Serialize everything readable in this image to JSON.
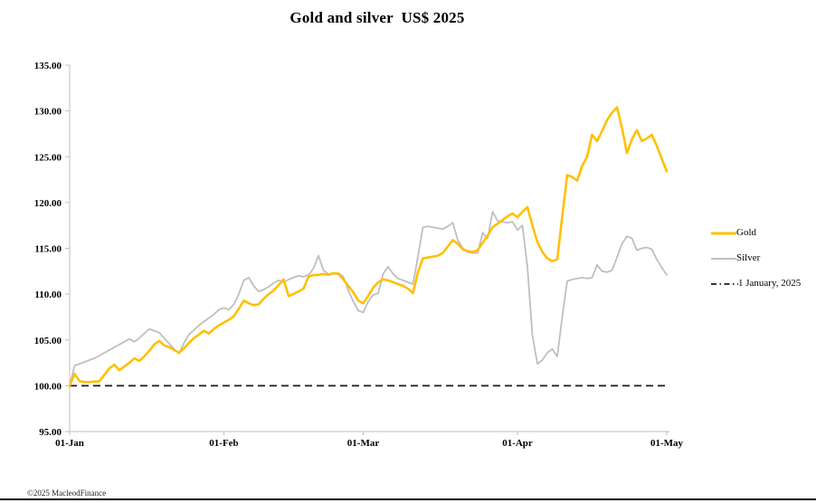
{
  "page": {
    "title": "Gold and silver  US$ 2025",
    "copyright": "©2025 MacleodFinance"
  },
  "legend": {
    "items": [
      {
        "label": "Gold",
        "color": "#FFC000"
      },
      {
        "label": "Silver",
        "color": "#BFBFBF"
      },
      {
        "label": "1 January, 2025",
        "color": "#1A1A1A"
      }
    ]
  },
  "chart_data": {
    "type": "line",
    "title": "Gold and silver  US$ 2025",
    "xlabel": "",
    "ylabel": "",
    "x_unit": "calendar days since 1 January 2025, indexed 100 = 1 Jan price",
    "grid": false,
    "legend_position": "right",
    "xlim_days": [
      0,
      120
    ],
    "ylim": [
      95,
      135
    ],
    "axis_color": "#BFBFBF",
    "x_ticks": [
      {
        "day": 0,
        "label": "01-Jan"
      },
      {
        "day": 31,
        "label": "01-Feb"
      },
      {
        "day": 59,
        "label": "01-Mar"
      },
      {
        "day": 90,
        "label": "01-Apr"
      },
      {
        "day": 120,
        "label": "01-May"
      }
    ],
    "y_ticks": [
      {
        "value": 95,
        "label": "95.00"
      },
      {
        "value": 100,
        "label": "100.00"
      },
      {
        "value": 105,
        "label": "105.00"
      },
      {
        "value": 110,
        "label": "110.00"
      },
      {
        "value": 115,
        "label": "115.00"
      },
      {
        "value": 120,
        "label": "120.00"
      },
      {
        "value": 125,
        "label": "125.00"
      },
      {
        "value": 130,
        "label": "130.00"
      },
      {
        "value": 135,
        "label": "135.00"
      }
    ],
    "baseline": {
      "value": 100,
      "label": "1 January, 2025",
      "color": "#1A1A1A",
      "style": "dashed"
    },
    "series": [
      {
        "name": "Gold",
        "color": "#FFC000",
        "width": 2.6,
        "points": [
          [
            0,
            100.0
          ],
          [
            1,
            101.3
          ],
          [
            2,
            100.5
          ],
          [
            3,
            100.4
          ],
          [
            4,
            100.4
          ],
          [
            6,
            100.5
          ],
          [
            7,
            101.2
          ],
          [
            8,
            101.9
          ],
          [
            9,
            102.3
          ],
          [
            10,
            101.7
          ],
          [
            11,
            102.1
          ],
          [
            12,
            102.5
          ],
          [
            13,
            103.0
          ],
          [
            14,
            102.7
          ],
          [
            15,
            103.2
          ],
          [
            16,
            103.8
          ],
          [
            17,
            104.5
          ],
          [
            18,
            104.9
          ],
          [
            19,
            104.4
          ],
          [
            20,
            104.2
          ],
          [
            21,
            103.9
          ],
          [
            22,
            103.6
          ],
          [
            23,
            104.1
          ],
          [
            24,
            104.7
          ],
          [
            25,
            105.2
          ],
          [
            26,
            105.6
          ],
          [
            27,
            106.0
          ],
          [
            28,
            105.7
          ],
          [
            29,
            106.2
          ],
          [
            30,
            106.6
          ],
          [
            31,
            106.9
          ],
          [
            32,
            107.2
          ],
          [
            33,
            107.6
          ],
          [
            34,
            108.4
          ],
          [
            35,
            109.3
          ],
          [
            36,
            109.0
          ],
          [
            37,
            108.8
          ],
          [
            38,
            108.9
          ],
          [
            39,
            109.5
          ],
          [
            40,
            110.0
          ],
          [
            41,
            110.4
          ],
          [
            42,
            111.0
          ],
          [
            43,
            111.6
          ],
          [
            44,
            109.8
          ],
          [
            45,
            110.0
          ],
          [
            46,
            110.3
          ],
          [
            47,
            110.6
          ],
          [
            48,
            111.9
          ],
          [
            49,
            112.1
          ],
          [
            50,
            112.1
          ],
          [
            51,
            112.2
          ],
          [
            52,
            112.1
          ],
          [
            53,
            112.3
          ],
          [
            54,
            112.2
          ],
          [
            55,
            111.6
          ],
          [
            56,
            110.9
          ],
          [
            57,
            110.2
          ],
          [
            58,
            109.3
          ],
          [
            59,
            109.0
          ],
          [
            60,
            109.8
          ],
          [
            61,
            110.7
          ],
          [
            62,
            111.3
          ],
          [
            63,
            111.6
          ],
          [
            64,
            111.5
          ],
          [
            65,
            111.3
          ],
          [
            66,
            111.1
          ],
          [
            67,
            110.9
          ],
          [
            68,
            110.6
          ],
          [
            69,
            110.1
          ],
          [
            70,
            112.4
          ],
          [
            71,
            113.9
          ],
          [
            72,
            114.0
          ],
          [
            73,
            114.1
          ],
          [
            74,
            114.2
          ],
          [
            75,
            114.5
          ],
          [
            76,
            115.2
          ],
          [
            77,
            115.9
          ],
          [
            78,
            115.5
          ],
          [
            79,
            114.9
          ],
          [
            80,
            114.7
          ],
          [
            81,
            114.6
          ],
          [
            82,
            114.8
          ],
          [
            83,
            115.6
          ],
          [
            84,
            116.4
          ],
          [
            85,
            117.3
          ],
          [
            86,
            117.7
          ],
          [
            87,
            118.1
          ],
          [
            88,
            118.5
          ],
          [
            89,
            118.8
          ],
          [
            90,
            118.4
          ],
          [
            91,
            119.0
          ],
          [
            92,
            119.5
          ],
          [
            93,
            117.5
          ],
          [
            94,
            115.7
          ],
          [
            95,
            114.6
          ],
          [
            96,
            113.9
          ],
          [
            97,
            113.6
          ],
          [
            98,
            113.8
          ],
          [
            99,
            118.5
          ],
          [
            100,
            123.0
          ],
          [
            101,
            122.8
          ],
          [
            102,
            122.4
          ],
          [
            103,
            124.0
          ],
          [
            104,
            125.0
          ],
          [
            105,
            127.4
          ],
          [
            106,
            126.7
          ],
          [
            107,
            127.8
          ],
          [
            108,
            129.0
          ],
          [
            109,
            129.8
          ],
          [
            110,
            130.4
          ],
          [
            111,
            128.2
          ],
          [
            112,
            125.4
          ],
          [
            113,
            126.9
          ],
          [
            114,
            127.9
          ],
          [
            115,
            126.7
          ],
          [
            116,
            127.0
          ],
          [
            117,
            127.4
          ],
          [
            118,
            126.2
          ],
          [
            119,
            124.8
          ],
          [
            120,
            123.4
          ]
        ]
      },
      {
        "name": "Silver",
        "color": "#BFBFBF",
        "width": 1.8,
        "points": [
          [
            0,
            100.0
          ],
          [
            1,
            102.2
          ],
          [
            2,
            102.4
          ],
          [
            3,
            102.6
          ],
          [
            4,
            102.8
          ],
          [
            5,
            103.0
          ],
          [
            6,
            103.3
          ],
          [
            7,
            103.6
          ],
          [
            8,
            103.9
          ],
          [
            9,
            104.2
          ],
          [
            10,
            104.5
          ],
          [
            11,
            104.8
          ],
          [
            12,
            105.1
          ],
          [
            13,
            104.8
          ],
          [
            14,
            105.2
          ],
          [
            15,
            105.7
          ],
          [
            16,
            106.2
          ],
          [
            17,
            106.0
          ],
          [
            18,
            105.8
          ],
          [
            19,
            105.2
          ],
          [
            20,
            104.6
          ],
          [
            21,
            104.0
          ],
          [
            22,
            103.5
          ],
          [
            23,
            104.7
          ],
          [
            24,
            105.6
          ],
          [
            25,
            106.1
          ],
          [
            26,
            106.6
          ],
          [
            27,
            107.0
          ],
          [
            28,
            107.4
          ],
          [
            29,
            107.8
          ],
          [
            30,
            108.3
          ],
          [
            31,
            108.5
          ],
          [
            32,
            108.3
          ],
          [
            33,
            108.9
          ],
          [
            34,
            110.0
          ],
          [
            35,
            111.5
          ],
          [
            36,
            111.8
          ],
          [
            37,
            110.9
          ],
          [
            38,
            110.3
          ],
          [
            39,
            110.5
          ],
          [
            40,
            110.8
          ],
          [
            41,
            111.2
          ],
          [
            42,
            111.5
          ],
          [
            43,
            111.3
          ],
          [
            44,
            111.6
          ],
          [
            45,
            111.8
          ],
          [
            46,
            112.0
          ],
          [
            47,
            111.9
          ],
          [
            48,
            112.1
          ],
          [
            49,
            112.8
          ],
          [
            50,
            114.2
          ],
          [
            51,
            112.6
          ],
          [
            52,
            112.2
          ],
          [
            53,
            112.2
          ],
          [
            54,
            112.3
          ],
          [
            55,
            111.9
          ],
          [
            56,
            110.4
          ],
          [
            57,
            109.2
          ],
          [
            58,
            108.2
          ],
          [
            59,
            108.0
          ],
          [
            60,
            109.2
          ],
          [
            61,
            109.9
          ],
          [
            62,
            110.1
          ],
          [
            63,
            112.2
          ],
          [
            64,
            113.0
          ],
          [
            65,
            112.2
          ],
          [
            66,
            111.7
          ],
          [
            67,
            111.5
          ],
          [
            68,
            111.3
          ],
          [
            69,
            111.1
          ],
          [
            70,
            114.1
          ],
          [
            71,
            117.3
          ],
          [
            72,
            117.4
          ],
          [
            73,
            117.3
          ],
          [
            74,
            117.2
          ],
          [
            75,
            117.1
          ],
          [
            76,
            117.4
          ],
          [
            77,
            117.8
          ],
          [
            78,
            115.9
          ],
          [
            79,
            115.0
          ],
          [
            80,
            114.6
          ],
          [
            81,
            114.5
          ],
          [
            82,
            114.5
          ],
          [
            83,
            116.7
          ],
          [
            84,
            116.1
          ],
          [
            85,
            119.0
          ],
          [
            86,
            118.0
          ],
          [
            87,
            117.9
          ],
          [
            88,
            117.8
          ],
          [
            89,
            117.9
          ],
          [
            90,
            117.0
          ],
          [
            91,
            117.5
          ],
          [
            92,
            113.0
          ],
          [
            93,
            105.5
          ],
          [
            94,
            102.4
          ],
          [
            95,
            102.8
          ],
          [
            96,
            103.6
          ],
          [
            97,
            104.0
          ],
          [
            98,
            103.2
          ],
          [
            99,
            107.5
          ],
          [
            100,
            111.4
          ],
          [
            101,
            111.6
          ],
          [
            102,
            111.7
          ],
          [
            103,
            111.8
          ],
          [
            104,
            111.7
          ],
          [
            105,
            111.8
          ],
          [
            106,
            113.2
          ],
          [
            107,
            112.5
          ],
          [
            108,
            112.4
          ],
          [
            109,
            112.6
          ],
          [
            110,
            114.0
          ],
          [
            111,
            115.5
          ],
          [
            112,
            116.3
          ],
          [
            113,
            116.1
          ],
          [
            114,
            114.8
          ],
          [
            115,
            115.0
          ],
          [
            116,
            115.1
          ],
          [
            117,
            114.9
          ],
          [
            118,
            113.8
          ],
          [
            119,
            112.9
          ],
          [
            120,
            112.1
          ]
        ]
      }
    ]
  }
}
